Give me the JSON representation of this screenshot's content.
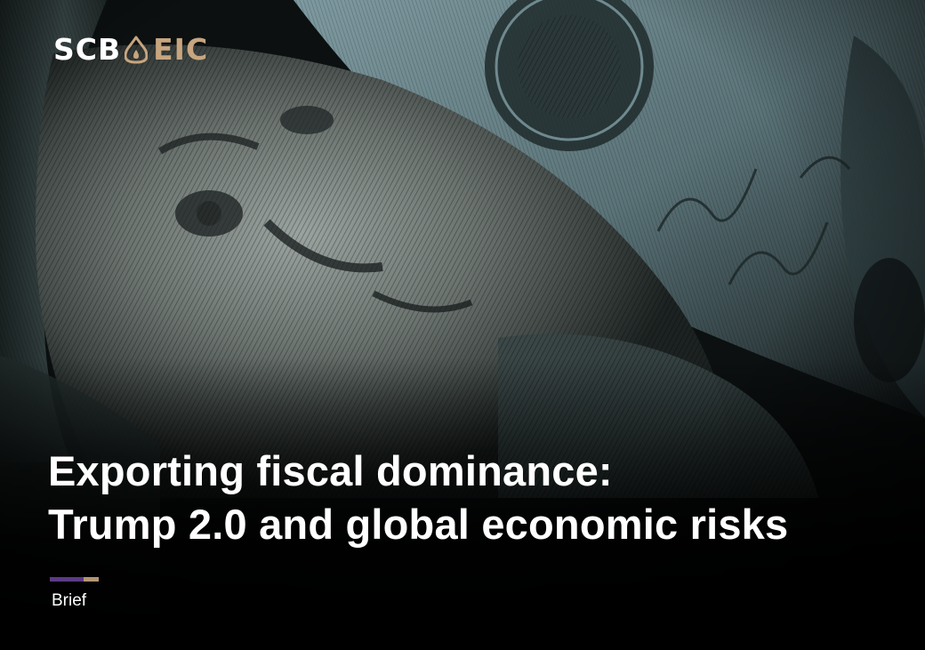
{
  "brand": {
    "name_left": "SCB",
    "name_right": "EIC",
    "logo_mark_icon": "scb-bell-mark-icon",
    "colors": {
      "white": "#ffffff",
      "gold": "#c7a57f",
      "purple": "#5b3a86",
      "tan": "#b49675"
    }
  },
  "cover": {
    "title_lines": [
      "Exporting fiscal dominance:",
      "Trump 2.0 and global economic risks"
    ],
    "category": "Brief",
    "background_image": "rolled-us-100-dollar-banknote-photo"
  }
}
